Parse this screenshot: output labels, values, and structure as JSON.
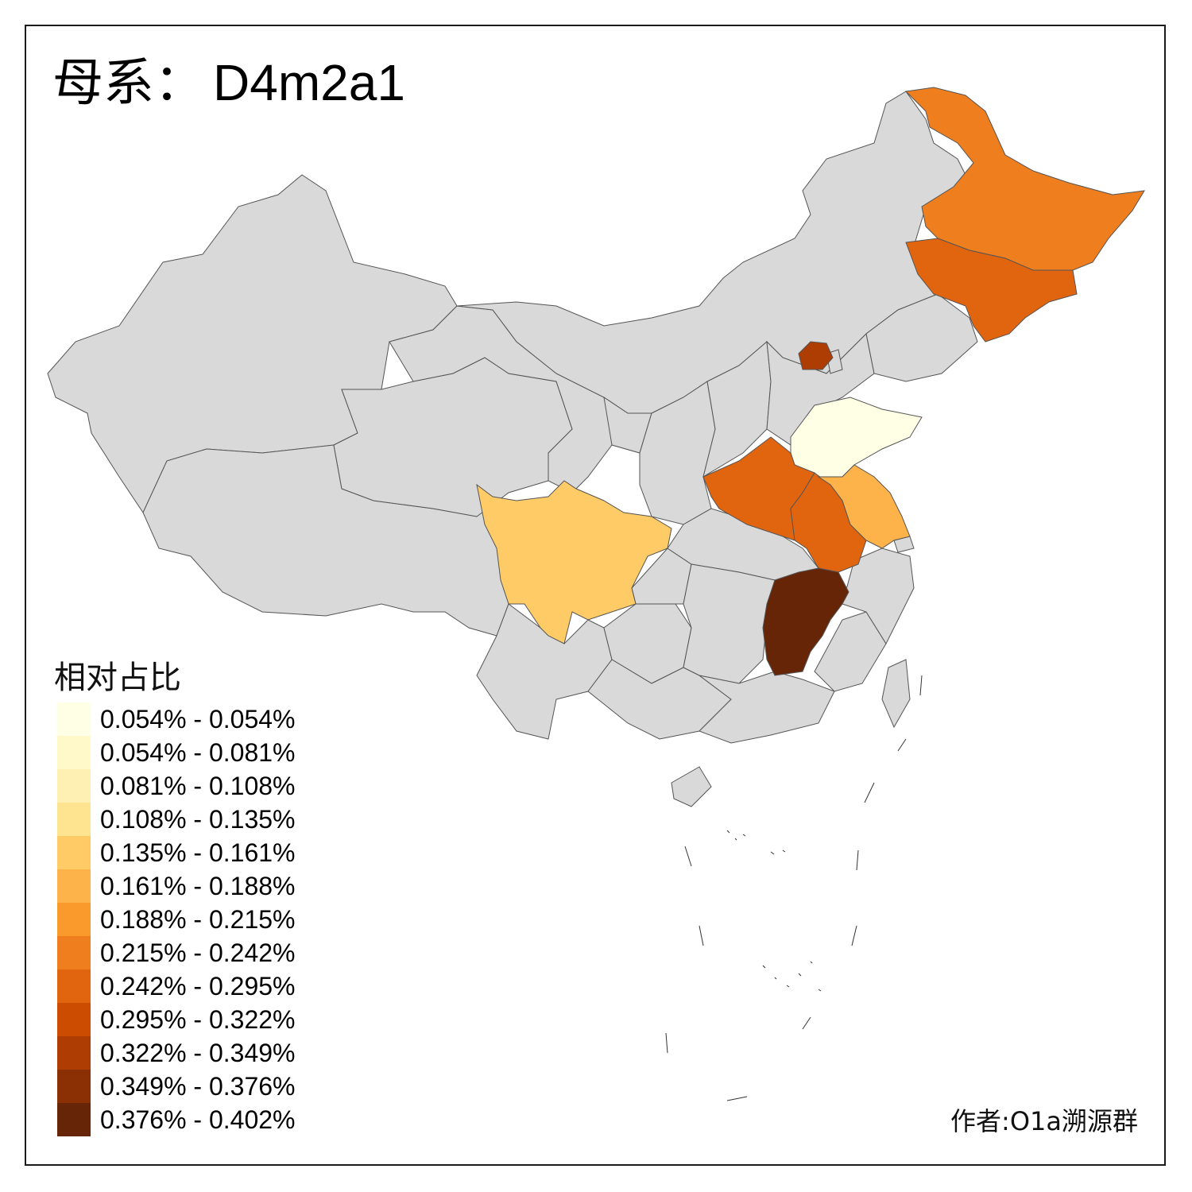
{
  "title": {
    "prefix": "母系：",
    "haplogroup": "D4m2a1"
  },
  "legend": {
    "title": "相对占比",
    "bins": [
      {
        "label": "0.054% - 0.054%",
        "color": "#FFFFE5"
      },
      {
        "label": "0.054% - 0.081%",
        "color": "#FFF8C9"
      },
      {
        "label": "0.081% - 0.108%",
        "color": "#FEF0B2"
      },
      {
        "label": "0.108% - 0.135%",
        "color": "#FEE391"
      },
      {
        "label": "0.135% - 0.161%",
        "color": "#FECB66"
      },
      {
        "label": "0.161% - 0.188%",
        "color": "#FDB24A"
      },
      {
        "label": "0.188% - 0.215%",
        "color": "#FB9A2C"
      },
      {
        "label": "0.215% - 0.242%",
        "color": "#EF7E1E"
      },
      {
        "label": "0.242% - 0.295%",
        "color": "#E1640F"
      },
      {
        "label": "0.295% - 0.322%",
        "color": "#CC4C02"
      },
      {
        "label": "0.322% - 0.349%",
        "color": "#AD3D03"
      },
      {
        "label": "0.349% - 0.376%",
        "color": "#8B3004"
      },
      {
        "label": "0.376% - 0.402%",
        "color": "#662506"
      }
    ]
  },
  "credit": "作者:O1a溯源群",
  "colors": {
    "no_data": "#D9D9D9",
    "border": "#555555",
    "frame": "#1A1A1A"
  },
  "regions": [
    {
      "name": "Heilongjiang",
      "bin": 7
    },
    {
      "name": "Jilin",
      "bin": 8
    },
    {
      "name": "Beijing",
      "bin": 10
    },
    {
      "name": "Shandong",
      "bin": 0
    },
    {
      "name": "Henan",
      "bin": 8
    },
    {
      "name": "Anhui",
      "bin": 8
    },
    {
      "name": "Jiangsu",
      "bin": 5
    },
    {
      "name": "Sichuan",
      "bin": 4
    },
    {
      "name": "Jiangxi",
      "bin": 12
    }
  ]
}
